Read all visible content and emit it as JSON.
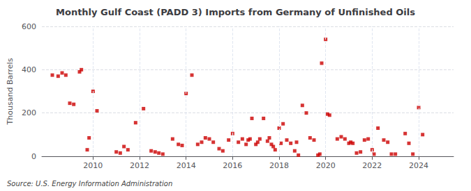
{
  "chart_data": {
    "type": "scatter",
    "title": "Monthly Gulf Coast (PADD 3) Imports from Germany of Unfinished Oils",
    "ylabel": "Thousand Barrels",
    "annotation": "Source: U.S. Energy Information Administration",
    "color": "#cc0000",
    "marker": "square",
    "grid": true,
    "xlim": [
      2007.8,
      2025.5
    ],
    "xticks": [
      2010,
      2012,
      2014,
      2016,
      2018,
      2020,
      2022,
      2024
    ],
    "ylim": [
      0,
      600
    ],
    "yticks": [
      0,
      200,
      400,
      600
    ],
    "x": [
      2008.25,
      2008.5,
      2008.67,
      2008.83,
      2009.0,
      2009.17,
      2009.42,
      2009.5,
      2009.75,
      2009.83,
      2010.0,
      2010.17,
      2011.0,
      2011.17,
      2011.33,
      2011.5,
      2011.83,
      2012.17,
      2012.5,
      2012.67,
      2012.83,
      2013.0,
      2013.42,
      2013.67,
      2013.83,
      2014.0,
      2014.25,
      2014.5,
      2014.67,
      2014.83,
      2015.0,
      2015.17,
      2015.42,
      2015.58,
      2015.83,
      2016.0,
      2016.25,
      2016.42,
      2016.58,
      2016.67,
      2016.75,
      2016.83,
      2017.0,
      2017.08,
      2017.17,
      2017.33,
      2017.5,
      2017.58,
      2017.67,
      2017.75,
      2017.83,
      2018.0,
      2018.08,
      2018.17,
      2018.33,
      2018.5,
      2018.67,
      2018.75,
      2018.83,
      2019.0,
      2019.17,
      2019.33,
      2019.5,
      2019.67,
      2019.75,
      2019.83,
      2020.0,
      2020.08,
      2020.17,
      2020.5,
      2020.67,
      2020.83,
      2021.0,
      2021.08,
      2021.17,
      2021.33,
      2021.5,
      2021.67,
      2021.83,
      2022.0,
      2022.08,
      2022.25,
      2022.5,
      2022.67,
      2022.83,
      2023.0,
      2023.42,
      2023.58,
      2023.75,
      2024.0,
      2024.17
    ],
    "values": [
      375,
      370,
      385,
      375,
      245,
      240,
      390,
      400,
      30,
      85,
      300,
      210,
      20,
      15,
      45,
      30,
      155,
      220,
      25,
      20,
      15,
      10,
      80,
      55,
      50,
      290,
      375,
      55,
      65,
      85,
      80,
      65,
      35,
      25,
      75,
      105,
      65,
      80,
      55,
      75,
      80,
      175,
      55,
      65,
      80,
      175,
      70,
      85,
      55,
      45,
      30,
      130,
      60,
      150,
      75,
      60,
      25,
      65,
      5,
      235,
      200,
      85,
      75,
      5,
      10,
      430,
      540,
      195,
      190,
      80,
      90,
      80,
      60,
      65,
      60,
      15,
      20,
      75,
      80,
      30,
      10,
      130,
      75,
      65,
      10,
      10,
      105,
      60,
      10,
      225,
      100
    ]
  }
}
